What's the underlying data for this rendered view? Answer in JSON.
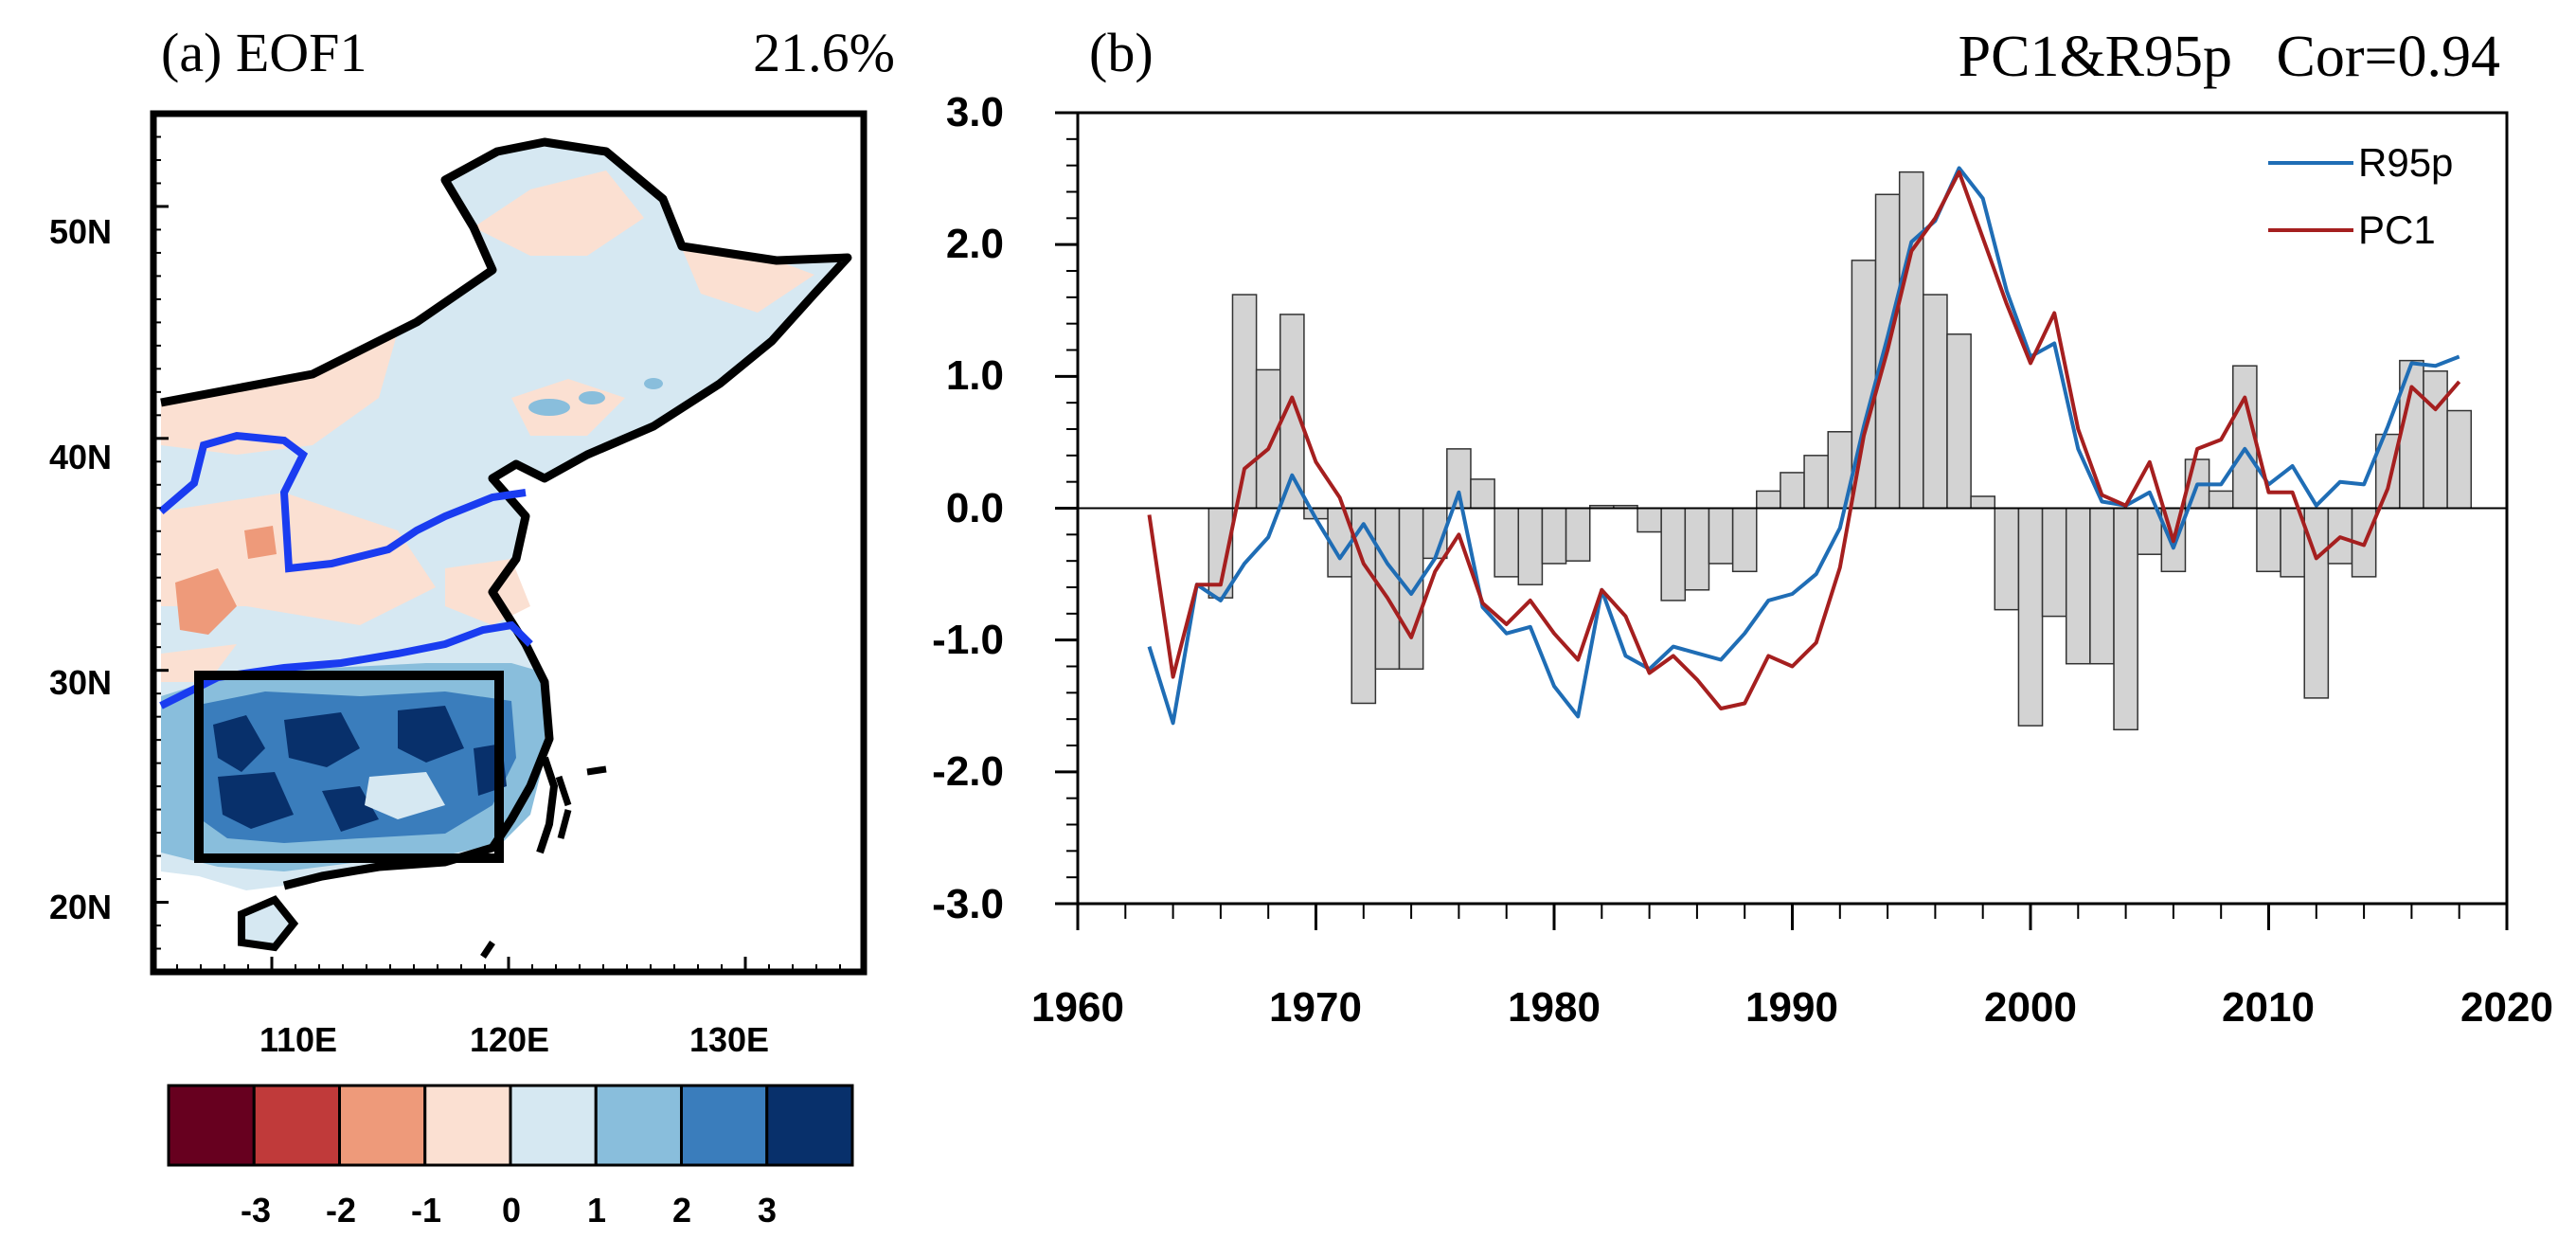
{
  "chart_data": [
    {
      "type": "map",
      "panel_label": "(a) EOF1",
      "variance_explained": "21.6%",
      "lat_ticks": [
        "20N",
        "30N",
        "40N",
        "50N"
      ],
      "lon_ticks": [
        "110E",
        "120E",
        "130E"
      ],
      "lat_range": [
        17,
        54
      ],
      "lon_range": [
        105,
        135
      ],
      "study_box": {
        "lon": [
          107,
          120
        ],
        "lat": [
          22,
          30
        ]
      },
      "colorbar": {
        "labels": [
          "-3",
          "-2",
          "-1",
          "0",
          "1",
          "2",
          "3"
        ],
        "colors": [
          "#67001f",
          "#c03a3a",
          "#ee9a7a",
          "#fbe0d2",
          "#d6e8f2",
          "#89bedc",
          "#3a7dbc",
          "#08306b"
        ]
      }
    },
    {
      "type": "bar+line",
      "panel_label": "(b)",
      "title": "PC1&R95p   Cor=0.94",
      "xlim": [
        1960,
        2020
      ],
      "ylim": [
        -3.0,
        3.0
      ],
      "x_ticks": [
        "1960",
        "1970",
        "1980",
        "1990",
        "2000",
        "2010",
        "2020"
      ],
      "y_ticks": [
        "3.0",
        "2.0",
        "1.0",
        "0.0",
        "-1.0",
        "-2.0",
        "-3.0"
      ],
      "years": [
        1963,
        1964,
        1965,
        1966,
        1967,
        1968,
        1969,
        1970,
        1971,
        1972,
        1973,
        1974,
        1975,
        1976,
        1977,
        1978,
        1979,
        1980,
        1981,
        1982,
        1983,
        1984,
        1985,
        1986,
        1987,
        1988,
        1989,
        1990,
        1991,
        1992,
        1993,
        1994,
        1995,
        1996,
        1997,
        1998,
        1999,
        2000,
        2001,
        2002,
        2003,
        2004,
        2005,
        2006,
        2007,
        2008,
        2009,
        2010,
        2011,
        2012,
        2013,
        2014,
        2015,
        2016,
        2017,
        2018
      ],
      "bars": [
        0,
        0,
        0,
        -0.68,
        1.62,
        1.05,
        1.47,
        -0.08,
        -0.52,
        -1.48,
        -1.22,
        -1.22,
        -0.38,
        0.45,
        0.22,
        -0.52,
        -0.58,
        -0.42,
        -0.4,
        0.02,
        0.02,
        -0.18,
        -0.7,
        -0.62,
        -0.42,
        -0.48,
        0.13,
        0.27,
        0.4,
        0.58,
        1.88,
        2.38,
        2.55,
        1.62,
        1.32,
        0.09,
        -0.77,
        -1.65,
        -0.82,
        -1.18,
        -1.18,
        -1.68,
        -0.35,
        -0.48,
        0.37,
        0.13,
        1.08,
        -0.48,
        -0.52,
        -1.44,
        -0.42,
        -0.52,
        0.56,
        1.12,
        1.04,
        0.74
      ],
      "series": [
        {
          "name": "R95p",
          "color": "#1f6db5",
          "values": [
            -1.05,
            -1.63,
            -0.58,
            -0.7,
            -0.42,
            -0.22,
            0.25,
            -0.08,
            -0.38,
            -0.12,
            -0.42,
            -0.65,
            -0.38,
            0.12,
            -0.75,
            -0.95,
            -0.9,
            -1.35,
            -1.58,
            -0.62,
            -1.12,
            -1.22,
            -1.05,
            -1.1,
            -1.15,
            -0.95,
            -0.7,
            -0.65,
            -0.5,
            -0.15,
            0.62,
            1.3,
            2.02,
            2.18,
            2.58,
            2.35,
            1.65,
            1.15,
            1.25,
            0.45,
            0.05,
            0.02,
            0.12,
            -0.3,
            0.18,
            0.18,
            0.45,
            0.18,
            0.32,
            0.02,
            0.2,
            0.18,
            0.62,
            1.1,
            1.08,
            1.15
          ]
        },
        {
          "name": "PC1",
          "color": "#a51f1f",
          "values": [
            -0.05,
            -1.28,
            -0.58,
            -0.58,
            0.3,
            0.45,
            0.84,
            0.35,
            0.08,
            -0.42,
            -0.68,
            -0.98,
            -0.48,
            -0.2,
            -0.72,
            -0.88,
            -0.7,
            -0.95,
            -1.15,
            -0.62,
            -0.82,
            -1.25,
            -1.12,
            -1.3,
            -1.52,
            -1.48,
            -1.12,
            -1.2,
            -1.02,
            -0.45,
            0.55,
            1.2,
            1.95,
            2.2,
            2.55,
            2.05,
            1.55,
            1.1,
            1.48,
            0.6,
            0.1,
            0.02,
            0.35,
            -0.25,
            0.45,
            0.52,
            0.84,
            0.12,
            0.12,
            -0.38,
            -0.22,
            -0.28,
            0.15,
            0.92,
            0.75,
            0.96
          ]
        }
      ]
    }
  ]
}
